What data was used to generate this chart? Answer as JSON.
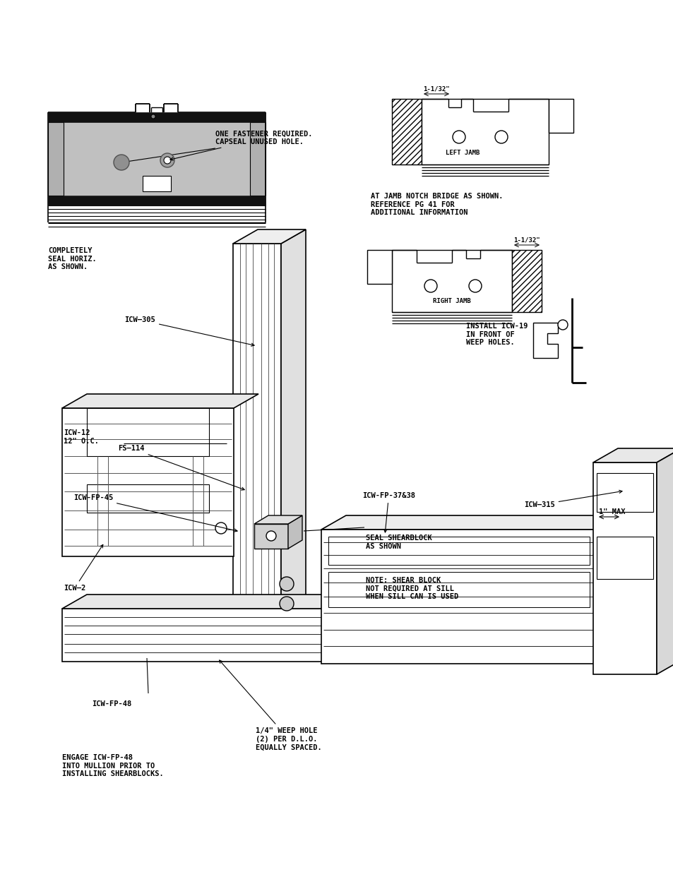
{
  "bg_color": "#ffffff",
  "annotations": {
    "one_fastener": "ONE FASTENER REQUIRED.\nCAPSEAL UNUSED HOLE.",
    "completely_seal": "COMPLETELY\nSEAL HORIZ.\nAS SHOWN.",
    "icw_305": "ICW–305",
    "fs_114": "FS–114",
    "icw_fp_45": "ICW-FP-45",
    "icw_12": "ICW-12\n12\" O.C.",
    "icw_2": "ICW–2",
    "icw_fp_48": "ICW-FP-48",
    "engage_icw": "ENGAGE ICW-FP-48\nINTO MULLION PRIOR TO\nINSTALLING SHEARBLOCKS.",
    "weep_hole": "1/4\" WEEP HOLE\n(2) PER D.L.O.\nEQUALLY SPACED.",
    "one_max": "1\" MAX",
    "icw_fp_3738": "ICW-FP-37&38",
    "icw_315": "ICW–315",
    "seal_shearblock": "SEAL SHEARBLOCK\nAS SHOWN",
    "note_shear": "NOTE: SHEAR BLOCK\nNOT REQUIRED AT SILL\nWHEN SILL CAN IS USED",
    "install_icw19": "INSTALL ICW-19\nIN FRONT OF\nWEEP HOLES.",
    "at_jamb": "AT JAMB NOTCH BRIDGE AS SHOWN.\nREFERENCE PG 41 FOR\nADDITIONAL INFORMATION",
    "left_jamb": "LEFT JAMB",
    "right_jamb": "RIGHT JAMB",
    "dim_top": "1-1/32\"",
    "dim_bot": "1-1/32\""
  },
  "fs": 7.5
}
